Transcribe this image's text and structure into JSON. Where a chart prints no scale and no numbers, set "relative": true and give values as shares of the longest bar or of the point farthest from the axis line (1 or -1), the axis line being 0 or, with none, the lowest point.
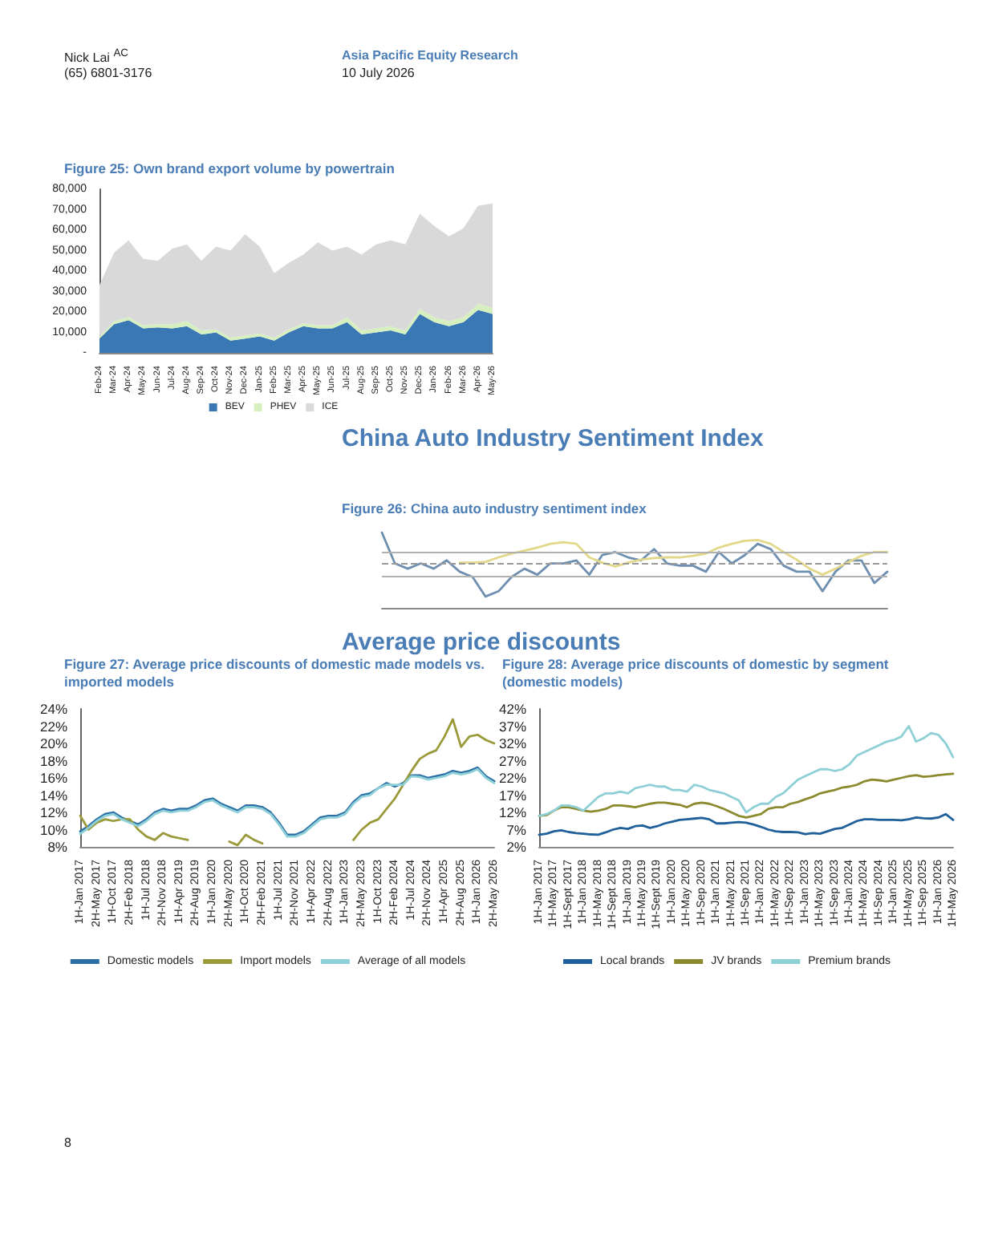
{
  "chart_data": [
    {
      "type": "area",
      "stacked": true,
      "title": "Figure 25: Own brand export volume by powertrain",
      "annotations": [
        "Nick Lai $^{AC}$",
        "(65) 6801-3176",
        "Asia Pacific Equity Research",
        "10 July 2026"
      ],
      "categories": [
        "Feb-24",
        "Mar-24",
        "Apr-24",
        "May-24",
        "Jun-24",
        "Jul-24",
        "Aug-24",
        "Sep-24",
        "Oct-24",
        "Nov-24",
        "Dec-24",
        "Jan-25",
        "Feb-25",
        "Mar-25",
        "Apr-25",
        "May-25",
        "Jun-25",
        "Jul-25",
        "Aug-25",
        "Sep-25",
        "Oct-25",
        "Nov-25",
        "Dec-25",
        "Jan-26",
        "Feb-26",
        "Mar-26",
        "Apr-26",
        "May-26"
      ],
      "series": [
        {
          "name": "BEV",
          "color": "#3a78b5",
          "values": [
            7000,
            14000,
            16000,
            12000,
            12500,
            12000,
            13000,
            9000,
            10000,
            6000,
            7000,
            8000,
            6000,
            10000,
            13000,
            12000,
            12000,
            15000,
            9000,
            10000,
            11000,
            9000,
            19000,
            15000,
            13000,
            15000,
            21000,
            19000
          ]
        },
        {
          "name": "PHEV",
          "color": "#d5efbf",
          "values": [
            1000,
            1500,
            1500,
            1500,
            1500,
            2000,
            2500,
            2000,
            1500,
            1500,
            1500,
            1500,
            1500,
            1500,
            1500,
            1500,
            1500,
            2500,
            2000,
            2000,
            2000,
            2000,
            2500,
            2500,
            2500,
            2500,
            3000,
            3000
          ]
        },
        {
          "name": "ICE",
          "color": "#d9d9d9",
          "values": [
            25000,
            33500,
            37500,
            32500,
            31000,
            37000,
            37500,
            34000,
            40500,
            42500,
            49500,
            42500,
            31500,
            32500,
            33500,
            40500,
            36500,
            34500,
            37000,
            41000,
            42000,
            42000,
            46500,
            44500,
            41500,
            43500,
            48000,
            51000
          ]
        }
      ],
      "ylim": [
        0,
        80000
      ],
      "yticks": [
        {
          "value": 0,
          "label": "-"
        },
        {
          "value": 10000,
          "label": "10,000"
        },
        {
          "value": 20000,
          "label": "20,000"
        },
        {
          "value": 30000,
          "label": "30,000"
        },
        {
          "value": 40000,
          "label": "40,000"
        },
        {
          "value": 50000,
          "label": "50,000"
        },
        {
          "value": 60000,
          "label": "60,000"
        },
        {
          "value": 70000,
          "label": "70,000"
        },
        {
          "value": 80000,
          "label": "80,000"
        }
      ],
      "legend": "bottom",
      "marker": "none"
    },
    {
      "type": "line",
      "relative": true,
      "title": "Figure 26: China auto industry sentiment index",
      "annotations": [
        "China Auto Industry Sentiment Index"
      ],
      "categories": [
        null,
        null,
        null,
        null,
        null,
        null,
        null,
        null,
        null,
        null,
        null,
        null,
        null,
        null,
        null,
        null,
        null,
        null,
        null,
        null,
        null,
        null,
        null,
        null,
        null,
        null,
        null,
        null,
        null,
        null,
        null,
        null,
        null,
        null,
        null,
        null,
        null,
        null,
        null,
        null
      ],
      "series": [
        {
          "color": "#6f8fb0",
          "values": [
            1.0,
            0.59,
            0.52,
            0.59,
            0.52,
            0.63,
            0.48,
            0.41,
            0.15,
            0.22,
            0.41,
            0.52,
            0.44,
            0.59,
            0.59,
            0.63,
            0.44,
            0.7,
            0.74,
            0.67,
            0.63,
            0.78,
            0.59,
            0.56,
            0.56,
            0.48,
            0.74,
            0.59,
            0.7,
            0.85,
            0.78,
            0.56,
            0.48,
            0.48,
            0.22,
            0.48,
            0.63,
            0.63,
            0.33,
            0.48
          ]
        },
        {
          "color": "#e3d78a",
          "values": [
            null,
            null,
            null,
            null,
            null,
            null,
            0.6,
            0.6,
            0.61,
            0.67,
            0.72,
            0.76,
            0.8,
            0.85,
            0.87,
            0.85,
            0.67,
            0.6,
            0.55,
            0.6,
            0.64,
            0.66,
            0.67,
            0.67,
            0.69,
            0.72,
            0.8,
            0.85,
            0.89,
            0.9,
            0.85,
            0.74,
            0.64,
            0.52,
            0.44,
            0.52,
            0.61,
            0.69,
            0.74,
            0.74
          ]
        }
      ],
      "ref_lines": [
        {
          "axis": "y",
          "value": 0.74,
          "color": "#b0b0b0"
        },
        {
          "axis": "y",
          "value": 0.58,
          "color": "#9a9a9a",
          "line_style": "dashed"
        },
        {
          "axis": "y",
          "value": 0.42,
          "color": "#b0b0b0"
        }
      ],
      "marker": "none"
    },
    {
      "type": "line",
      "title": "Figure 27: Average price discounts of domestic made models vs. imported models",
      "annotations": [
        "Average price discounts"
      ],
      "categories": [
        "1H-Jan 2017",
        null,
        "2H-May 2017",
        null,
        "1H-Oct 2017",
        null,
        "2H-Feb 2018",
        null,
        "1H-Jul 2018",
        null,
        "2H-Nov 2018",
        null,
        "1H-Apr 2019",
        null,
        "2H-Aug 2019",
        null,
        "1H-Jan 2020",
        null,
        "2H-May 2020",
        null,
        "1H-Oct 2020",
        null,
        "2H-Feb 2021",
        null,
        "1H-Jul 2021",
        null,
        "2H-Nov 2021",
        null,
        "1H-Apr 2022",
        null,
        "2H-Aug 2022",
        null,
        "1H-Jan 2023",
        null,
        "2H-May 2023",
        null,
        "1H-Oct 2023",
        null,
        "2H-Feb 2024",
        null,
        "1H-Jul 2024",
        null,
        "2H-Nov 2024",
        null,
        "1H-Apr 2025",
        null,
        "2H-Aug 2025",
        null,
        "1H-Jan 2026",
        null,
        "2H-May 2026"
      ],
      "series": [
        {
          "name": "Domestic models",
          "color": "#2a6fa6",
          "values": [
            9.8,
            10.4,
            11.2,
            11.8,
            12.0,
            11.4,
            11.0,
            10.6,
            11.2,
            12.0,
            12.4,
            12.2,
            12.4,
            12.4,
            12.8,
            13.4,
            13.6,
            13.0,
            12.6,
            12.2,
            12.8,
            12.8,
            12.6,
            12.0,
            10.8,
            9.4,
            9.4,
            9.8,
            10.6,
            11.4,
            11.6,
            11.6,
            12.0,
            13.2,
            14.0,
            14.2,
            14.8,
            15.4,
            15.0,
            15.4,
            16.3,
            16.3,
            16.0,
            16.2,
            16.4,
            16.8,
            16.6,
            16.8,
            17.2,
            16.2,
            15.6
          ]
        },
        {
          "name": "Import models",
          "color": "#9a9a3a",
          "values": [
            11.6,
            10.0,
            10.8,
            11.2,
            11.0,
            11.2,
            11.2,
            10.0,
            9.2,
            8.8,
            9.6,
            9.2,
            9.0,
            8.8,
            null,
            null,
            null,
            null,
            8.6,
            8.2,
            9.4,
            8.8,
            8.4,
            null,
            null,
            null,
            null,
            null,
            null,
            null,
            null,
            null,
            null,
            8.8,
            10.0,
            10.8,
            11.2,
            12.4,
            13.6,
            15.2,
            16.8,
            18.2,
            18.8,
            19.2,
            20.8,
            22.8,
            19.6,
            20.8,
            21.0,
            20.4,
            20.0
          ]
        },
        {
          "name": "Average of all models",
          "color": "#8fd0d8",
          "values": [
            9.5,
            10.2,
            11.0,
            11.6,
            11.8,
            11.2,
            10.8,
            10.4,
            11.0,
            11.8,
            12.2,
            12.0,
            12.2,
            12.2,
            12.6,
            13.2,
            13.4,
            12.8,
            12.4,
            12.0,
            12.6,
            12.6,
            12.4,
            11.8,
            10.6,
            9.2,
            9.2,
            9.6,
            10.4,
            11.2,
            11.4,
            11.4,
            11.8,
            13.0,
            13.8,
            14.0,
            14.8,
            15.2,
            15.2,
            15.2,
            16.2,
            16.1,
            15.8,
            16.0,
            16.2,
            16.6,
            16.4,
            16.6,
            17.0,
            16.0,
            15.4
          ]
        }
      ],
      "ylim": [
        8,
        24
      ],
      "yticks": [
        {
          "value": 8,
          "label": "8%"
        },
        {
          "value": 10,
          "label": "10%"
        },
        {
          "value": 12,
          "label": "12%"
        },
        {
          "value": 14,
          "label": "14%"
        },
        {
          "value": 16,
          "label": "16%"
        },
        {
          "value": 18,
          "label": "18%"
        },
        {
          "value": 20,
          "label": "20%"
        },
        {
          "value": 22,
          "label": "22%"
        },
        {
          "value": 24,
          "label": "24%"
        }
      ],
      "legend": "bottom",
      "marker": "none"
    },
    {
      "type": "line",
      "title": "Figure 28: Average price discounts of domestic by segment (domestic models)",
      "annotations": [
        "8"
      ],
      "categories": [
        "1H-Jan 2017",
        null,
        "1H-May 2017",
        null,
        "1H-Sept 2017",
        null,
        "1H-Jan 2018",
        null,
        "1H-May 2018",
        null,
        "1H-Sept 2018",
        null,
        "1H-Jan 2019",
        null,
        "1H-May 2019",
        null,
        "1H-Sept 2019",
        null,
        "1H-Jan 2020",
        null,
        "1H-May 2020",
        null,
        "1H-Sep 2020",
        null,
        "1H-Jan 2021",
        null,
        "1H-May 2021",
        null,
        "1H-Sep 2021",
        null,
        "1H-Jan 2022",
        null,
        "1H-May 2022",
        null,
        "1H-Sep 2022",
        null,
        "1H-Jan 2023",
        null,
        "1H-May 2023",
        null,
        "1H-Sep 2023",
        null,
        "1H-Jan 2024",
        null,
        "1H-May 2024",
        null,
        "1H-Sep 2024",
        null,
        "1H-Jan 2025",
        null,
        "1H-May 2025",
        null,
        "1H-Sep 2025",
        null,
        "1H-Jan 2026",
        null,
        "1H-May 2026"
      ],
      "series": [
        {
          "name": "Local brands",
          "color": "#1f5f9a",
          "values": [
            5.5,
            5.8,
            6.5,
            6.8,
            6.3,
            6.0,
            5.8,
            5.6,
            5.5,
            6.2,
            7.0,
            7.5,
            7.2,
            8.0,
            8.2,
            7.5,
            8.0,
            8.8,
            9.3,
            9.8,
            10.0,
            10.2,
            10.4,
            10.0,
            8.8,
            8.8,
            9.0,
            9.2,
            9.0,
            8.5,
            7.8,
            7.0,
            6.5,
            6.3,
            6.3,
            6.2,
            5.7,
            6.0,
            5.8,
            6.5,
            7.2,
            7.5,
            8.5,
            9.5,
            10.0,
            10.0,
            9.8,
            9.8,
            9.8,
            9.7,
            10.0,
            10.5,
            10.3,
            10.2,
            10.5,
            11.5,
            9.8
          ]
        },
        {
          "name": "JV brands",
          "color": "#8c8a2e",
          "values": [
            11.0,
            11.2,
            12.5,
            13.5,
            13.5,
            13.0,
            12.5,
            12.2,
            12.5,
            13.0,
            14.0,
            14.0,
            13.8,
            13.5,
            14.0,
            14.5,
            14.8,
            14.8,
            14.5,
            14.2,
            13.5,
            14.5,
            14.8,
            14.5,
            13.8,
            13.0,
            12.0,
            11.0,
            10.5,
            11.0,
            11.5,
            13.0,
            13.5,
            13.5,
            14.5,
            15.0,
            15.8,
            16.5,
            17.5,
            18.0,
            18.5,
            19.2,
            19.5,
            20.0,
            21.0,
            21.5,
            21.3,
            21.0,
            21.5,
            22.0,
            22.5,
            22.8,
            22.3,
            22.5,
            22.8,
            23.0,
            23.2
          ]
        },
        {
          "name": "Premium brands",
          "color": "#8fcfd6",
          "values": [
            11.0,
            11.5,
            12.5,
            14.0,
            14.0,
            13.5,
            12.5,
            14.5,
            16.5,
            17.5,
            17.5,
            18.0,
            17.5,
            19.0,
            19.5,
            20.0,
            19.5,
            19.5,
            18.5,
            18.5,
            18.0,
            20.0,
            19.5,
            18.5,
            18.0,
            17.5,
            16.5,
            15.5,
            12.0,
            13.5,
            14.5,
            14.5,
            16.5,
            17.5,
            19.5,
            21.5,
            22.5,
            23.5,
            24.5,
            24.5,
            24.0,
            24.5,
            26.0,
            28.5,
            29.5,
            30.5,
            31.5,
            32.5,
            33.0,
            34.0,
            37.0,
            32.5,
            33.5,
            35.0,
            34.5,
            32.0,
            28.0
          ]
        }
      ],
      "ylim": [
        2,
        42
      ],
      "yticks": [
        {
          "value": 2,
          "label": "2%"
        },
        {
          "value": 7,
          "label": "7%"
        },
        {
          "value": 12,
          "label": "12%"
        },
        {
          "value": 17,
          "label": "17%"
        },
        {
          "value": 22,
          "label": "22%"
        },
        {
          "value": 27,
          "label": "27%"
        },
        {
          "value": 32,
          "label": "32%"
        },
        {
          "value": 37,
          "label": "37%"
        },
        {
          "value": 42,
          "label": "42%"
        }
      ],
      "legend": "bottom",
      "marker": "none"
    }
  ]
}
